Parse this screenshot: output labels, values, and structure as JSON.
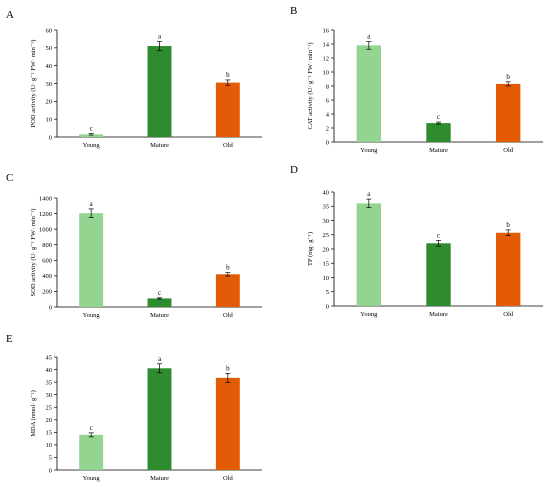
{
  "chart_data": [
    {
      "type": "bar",
      "panel": "A",
      "categories": [
        "Young",
        "Mature",
        "Old"
      ],
      "values": [
        1.5,
        51,
        30.5
      ],
      "errors": [
        0.4,
        2.5,
        1.5
      ],
      "significance": [
        "c",
        "a",
        "b"
      ],
      "colors": [
        "#92d490",
        "#2e8b2e",
        "#e35b05"
      ],
      "ylabel": "POD activity (U· g⁻¹ FW· min⁻¹)",
      "ylim": [
        0,
        60
      ],
      "yticks": [
        0,
        10,
        20,
        30,
        40,
        50,
        60
      ]
    },
    {
      "type": "bar",
      "panel": "B",
      "categories": [
        "Young",
        "Mature",
        "Old"
      ],
      "values": [
        13.8,
        2.7,
        8.3
      ],
      "errors": [
        0.55,
        0.15,
        0.3
      ],
      "significance": [
        "a",
        "c",
        "b"
      ],
      "colors": [
        "#92d490",
        "#2e8b2e",
        "#e35b05"
      ],
      "ylabel": "CAT activity (U· g⁻¹ FW· min⁻¹)",
      "ylim": [
        0,
        16
      ],
      "yticks": [
        0,
        2,
        4,
        6,
        8,
        10,
        12,
        14,
        16
      ]
    },
    {
      "type": "bar",
      "panel": "C",
      "categories": [
        "Young",
        "Mature",
        "Old"
      ],
      "values": [
        1205,
        110,
        420
      ],
      "errors": [
        55,
        8,
        22
      ],
      "significance": [
        "a",
        "c",
        "b"
      ],
      "colors": [
        "#92d490",
        "#2e8b2e",
        "#e35b05"
      ],
      "ylabel": "SOD activity (U· g⁻¹ FW· min⁻¹)",
      "ylim": [
        0,
        1400
      ],
      "yticks": [
        0,
        200,
        400,
        600,
        800,
        1000,
        1200,
        1400
      ]
    },
    {
      "type": "bar",
      "panel": "D",
      "categories": [
        "Young",
        "Mature",
        "Old"
      ],
      "values": [
        36,
        22,
        25.7
      ],
      "errors": [
        1.5,
        1.0,
        1.0
      ],
      "significance": [
        "a",
        "c",
        "b"
      ],
      "colors": [
        "#92d490",
        "#2e8b2e",
        "#e35b05"
      ],
      "ylabel": "TP (mg· g⁻¹)",
      "ylim": [
        0,
        40
      ],
      "yticks": [
        0,
        5,
        10,
        15,
        20,
        25,
        30,
        35,
        40
      ]
    },
    {
      "type": "bar",
      "panel": "E",
      "categories": [
        "Young",
        "Mature",
        "Old"
      ],
      "values": [
        14,
        40.5,
        36.7
      ],
      "errors": [
        0.8,
        1.8,
        1.8
      ],
      "significance": [
        "c",
        "a",
        "b"
      ],
      "colors": [
        "#92d490",
        "#2e8b2e",
        "#e35b05"
      ],
      "ylabel": "MDA (nmol· g⁻¹)",
      "ylim": [
        0,
        45
      ],
      "yticks": [
        0,
        5,
        10,
        15,
        20,
        25,
        30,
        35,
        40,
        45
      ]
    }
  ]
}
